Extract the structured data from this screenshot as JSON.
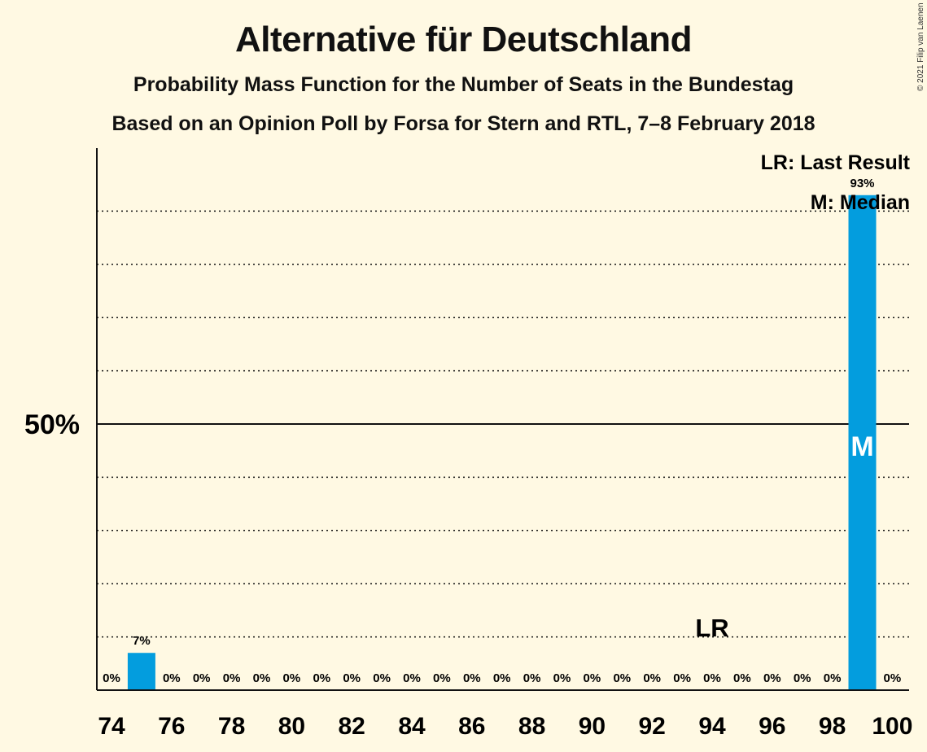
{
  "chart_data": {
    "type": "bar",
    "title": "Alternative für Deutschland",
    "subtitle": "Probability Mass Function for the Number of Seats in the Bundestag",
    "subtitle2": "Based on an Opinion Poll by Forsa for Stern and RTL, 7–8 February 2018",
    "copyright": "© 2021 Filip van Laenen",
    "x": [
      74,
      75,
      76,
      77,
      78,
      79,
      80,
      81,
      82,
      83,
      84,
      85,
      86,
      87,
      88,
      89,
      90,
      91,
      92,
      93,
      94,
      95,
      96,
      97,
      98,
      99,
      100
    ],
    "values": [
      0,
      7,
      0,
      0,
      0,
      0,
      0,
      0,
      0,
      0,
      0,
      0,
      0,
      0,
      0,
      0,
      0,
      0,
      0,
      0,
      0,
      0,
      0,
      0,
      0,
      93,
      0
    ],
    "labels": [
      "0%",
      "7%",
      "0%",
      "0%",
      "0%",
      "0%",
      "0%",
      "0%",
      "0%",
      "0%",
      "0%",
      "0%",
      "0%",
      "0%",
      "0%",
      "0%",
      "0%",
      "0%",
      "0%",
      "0%",
      "0%",
      "0%",
      "0%",
      "0%",
      "0%",
      "93%",
      "0%"
    ],
    "x_ticks": [
      "74",
      "76",
      "78",
      "80",
      "82",
      "84",
      "86",
      "88",
      "90",
      "92",
      "94",
      "96",
      "98",
      "100"
    ],
    "y_tick_label": "50%",
    "ylim": [
      0,
      100
    ],
    "grid": true,
    "last_result_seat": 94,
    "median_seat": 99,
    "last_result_marker": "LR",
    "median_marker": "M",
    "legend": [
      "LR: Last Result",
      "M: Median"
    ],
    "legend_position": "top-right",
    "bar_color": "#039DDE"
  }
}
